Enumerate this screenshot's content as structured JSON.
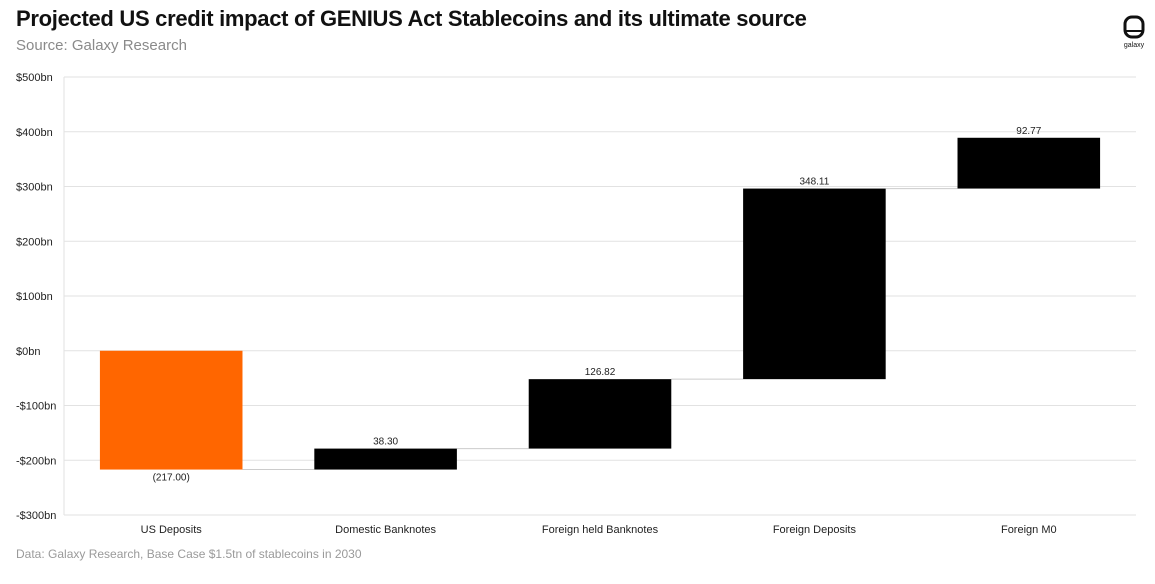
{
  "header": {
    "title": "Projected US credit impact of GENIUS Act Stablecoins and its ultimate source",
    "subtitle": "Source: Galaxy Research"
  },
  "footer": {
    "note": "Data: Galaxy Research, Base Case $1.5tn of stablecoins in 2030"
  },
  "logo": {
    "icon": "galaxy-logo-icon",
    "text": "galaxy"
  },
  "colors": {
    "negative": "#ff6600",
    "positive": "#000000",
    "grid": "#e2e2e2",
    "connector": "#cccccc"
  },
  "chart_data": {
    "type": "bar",
    "subtype": "waterfall",
    "title": "Projected US credit impact of GENIUS Act Stablecoins and its ultimate source",
    "subtitle": "Source: Galaxy Research",
    "categories": [
      "US Deposits",
      "Domestic Banknotes",
      "Foreign held Banknotes",
      "Foreign Deposits",
      "Foreign M0"
    ],
    "values": [
      -217.0,
      38.3,
      126.82,
      348.11,
      92.77
    ],
    "data_labels": [
      "(217.00)",
      "38.30",
      "126.82",
      "348.11",
      "92.77"
    ],
    "ylim": [
      -300,
      500
    ],
    "yticks": [
      500,
      400,
      300,
      200,
      100,
      0,
      -100,
      -200,
      -300
    ],
    "ytick_labels": [
      "$500bn",
      "$400bn",
      "$300bn",
      "$200bn",
      "$100bn",
      "$0bn",
      "-$100bn",
      "-$200bn",
      "-$300bn"
    ],
    "xlabel": "",
    "ylabel": "",
    "grid": true,
    "legend": "none"
  }
}
